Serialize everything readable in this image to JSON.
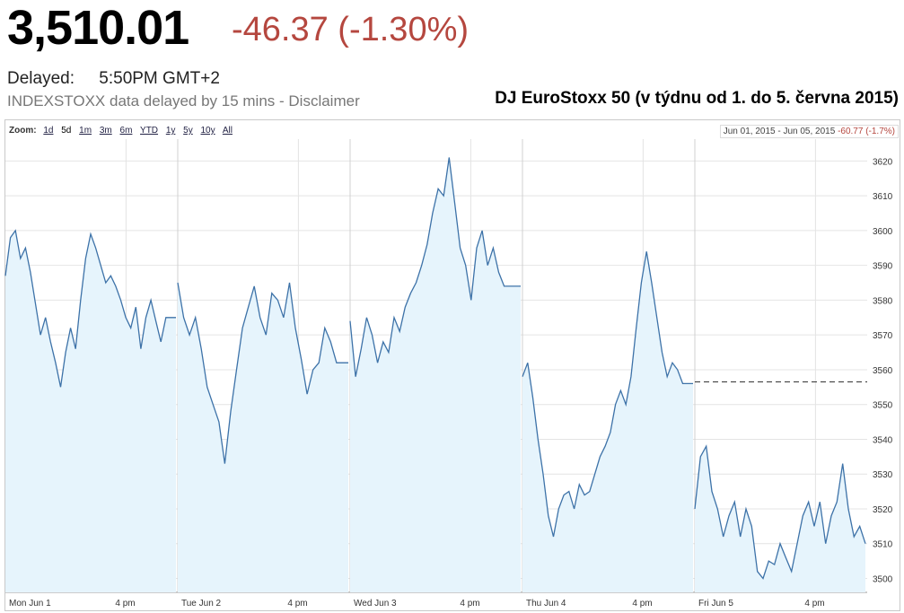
{
  "quote": {
    "price": "3,510.01",
    "change": "-46.37 (-1.30%)",
    "delayed_label": "Delayed:",
    "delayed_time": "5:50PM GMT+2",
    "disclaimer": "INDEXSTOXX data delayed by 15 mins - Disclaimer"
  },
  "overlay_title": "DJ EuroStoxx 50 (v týdnu od 1. do 5. června 2015)",
  "zoom": {
    "label": "Zoom:",
    "options": [
      "1d",
      "5d",
      "1m",
      "3m",
      "6m",
      "YTD",
      "1y",
      "5y",
      "10y",
      "All"
    ],
    "active": "5d"
  },
  "range": {
    "from": "Jun 01, 2015",
    "sep": "-",
    "to": "Jun 05, 2015",
    "change": "-60.77 (-1.7%)"
  },
  "colors": {
    "line": "#3d72a8",
    "fill": "#e6f4fc",
    "grid": "#e4e4e4",
    "negative": "#b5473f"
  },
  "chart_data": {
    "type": "area",
    "title": "",
    "xlabel": "",
    "ylabel": "",
    "ylim": [
      3496,
      3625
    ],
    "y_ticks": [
      3500,
      3510,
      3520,
      3530,
      3540,
      3550,
      3560,
      3570,
      3580,
      3590,
      3600,
      3610,
      3620
    ],
    "x_ticks": [
      "Mon Jun 1",
      "4 pm",
      "Tue Jun 2",
      "4 pm",
      "Wed Jun 3",
      "4 pm",
      "Thu Jun 4",
      "4 pm",
      "Fri Jun 5",
      "4 pm"
    ],
    "previous_close": 3556.5,
    "grid": true,
    "days": [
      {
        "day": "Mon Jun 1",
        "values": [
          3587,
          3598,
          3600,
          3592,
          3595,
          3588,
          3579,
          3570,
          3575,
          3568,
          3562,
          3555,
          3565,
          3572,
          3566,
          3580,
          3592,
          3599,
          3595,
          3590,
          3585,
          3587,
          3584,
          3580,
          3575,
          3572,
          3578,
          3566,
          3575,
          3580,
          3574,
          3568,
          3575,
          3575,
          3575
        ]
      },
      {
        "day": "Tue Jun 2",
        "values": [
          3585,
          3575,
          3570,
          3575,
          3566,
          3555,
          3550,
          3545,
          3533,
          3548,
          3560,
          3572,
          3578,
          3584,
          3575,
          3570,
          3582,
          3580,
          3575,
          3585,
          3572,
          3563,
          3553,
          3560,
          3562,
          3572,
          3568,
          3562,
          3562,
          3562
        ]
      },
      {
        "day": "Wed Jun 3",
        "values": [
          3574,
          3558,
          3566,
          3575,
          3570,
          3562,
          3568,
          3565,
          3575,
          3571,
          3578,
          3582,
          3585,
          3590,
          3596,
          3605,
          3612,
          3610,
          3621,
          3608,
          3595,
          3590,
          3580,
          3595,
          3600,
          3590,
          3595,
          3588,
          3584,
          3584,
          3584,
          3584
        ]
      },
      {
        "day": "Thu Jun 4",
        "values": [
          3558,
          3562,
          3552,
          3540,
          3530,
          3518,
          3512,
          3520,
          3524,
          3525,
          3520,
          3527,
          3524,
          3525,
          3530,
          3535,
          3538,
          3542,
          3550,
          3554,
          3550,
          3558,
          3572,
          3585,
          3594,
          3585,
          3575,
          3565,
          3558,
          3562,
          3560,
          3556,
          3556,
          3556
        ]
      },
      {
        "day": "Fri Jun 5",
        "values": [
          3520,
          3535,
          3538,
          3525,
          3520,
          3512,
          3518,
          3522,
          3512,
          3520,
          3515,
          3502,
          3500,
          3505,
          3504,
          3510,
          3506,
          3502,
          3510,
          3518,
          3522,
          3515,
          3522,
          3510,
          3518,
          3522,
          3533,
          3520,
          3512,
          3515,
          3510
        ]
      }
    ]
  }
}
